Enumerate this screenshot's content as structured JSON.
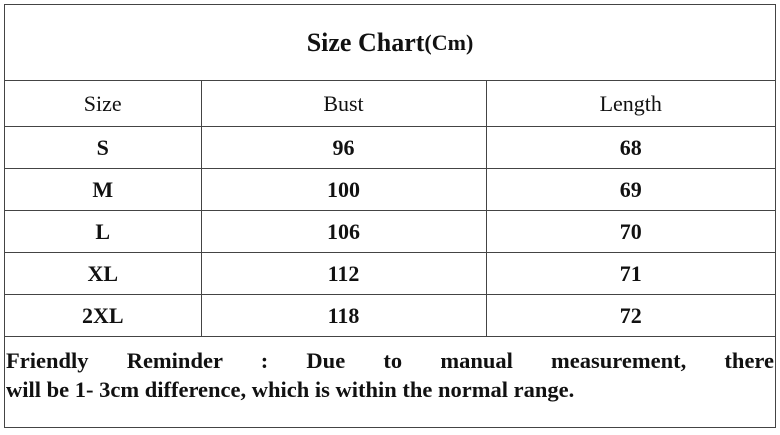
{
  "title": {
    "main": "Size Chart",
    "unit": "(Cm)"
  },
  "table": {
    "headers": [
      "Size",
      "Bust",
      "Length"
    ],
    "rows": [
      [
        "S",
        "96",
        "68"
      ],
      [
        "M",
        "100",
        "69"
      ],
      [
        "L",
        "106",
        "70"
      ],
      [
        "XL",
        "112",
        "71"
      ],
      [
        "2XL",
        "118",
        "72"
      ]
    ]
  },
  "reminder": {
    "line1": "Friendly Reminder : Due to manual measurement, there",
    "line2": "will be 1- 3cm difference, which is within the normal range."
  }
}
